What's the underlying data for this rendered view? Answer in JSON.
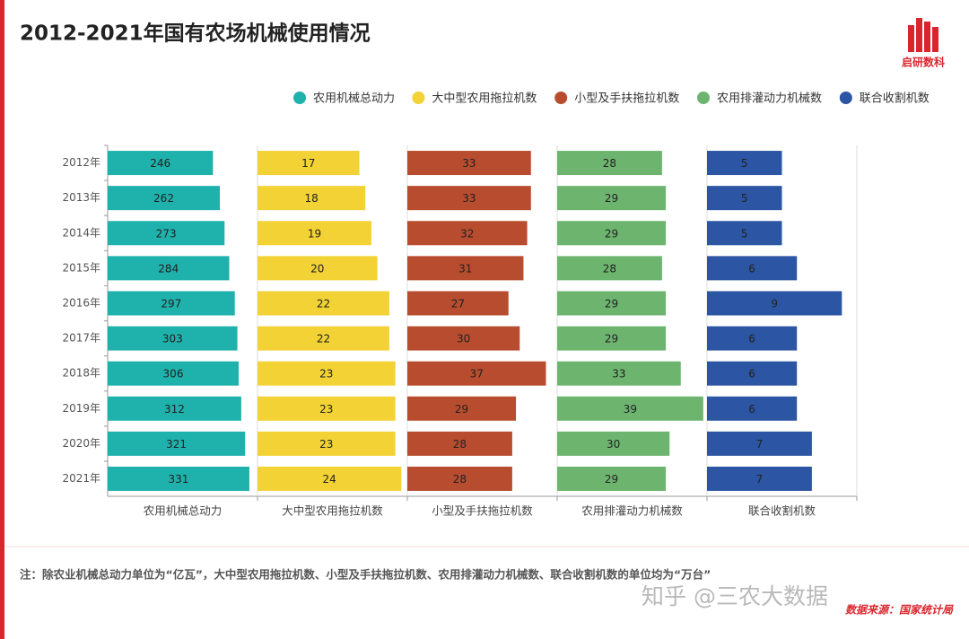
{
  "chart_data": {
    "type": "bar",
    "orientation": "horizontal",
    "layout": "small-multiples",
    "title": "2012-2021年国有农场机械使用情况",
    "categories": [
      "2012年",
      "2013年",
      "2014年",
      "2015年",
      "2016年",
      "2017年",
      "2018年",
      "2019年",
      "2020年",
      "2021年"
    ],
    "series": [
      {
        "name": "农用机械总动力",
        "color": "#1fb1ac",
        "xlim": [
          0,
          350
        ],
        "values": [
          246,
          262,
          273,
          284,
          297,
          303,
          306,
          312,
          321,
          331
        ]
      },
      {
        "name": "大中型农用拖拉机数",
        "color": "#f2d235",
        "xlim": [
          0,
          25
        ],
        "values": [
          17,
          18,
          19,
          20,
          22,
          22,
          23,
          23,
          23,
          24
        ]
      },
      {
        "name": "小型及手扶拖拉机数",
        "color": "#b84c2e",
        "xlim": [
          0,
          40
        ],
        "values": [
          33,
          33,
          32,
          31,
          27,
          30,
          37,
          29,
          28,
          28
        ]
      },
      {
        "name": "农用排灌动力机械数",
        "color": "#6db56f",
        "xlim": [
          0,
          40
        ],
        "values": [
          28,
          29,
          29,
          28,
          29,
          29,
          33,
          39,
          30,
          29
        ]
      },
      {
        "name": "联合收割机数",
        "color": "#2c55a3",
        "xlim": [
          0,
          10
        ],
        "values": [
          5,
          5,
          5,
          6,
          9,
          6,
          6,
          6,
          7,
          7
        ]
      }
    ],
    "legend_position": "top-right",
    "note": "注：除农业机械总动力单位为“亿瓦”，大中型农用拖拉机数、小型及手扶拖拉机数、农用排灌动力机械数、联合收割机数的单位均为“万台”",
    "source": "数据来源：国家统计局",
    "logo": "启研数科",
    "watermark": "知乎 @三农大数据"
  }
}
